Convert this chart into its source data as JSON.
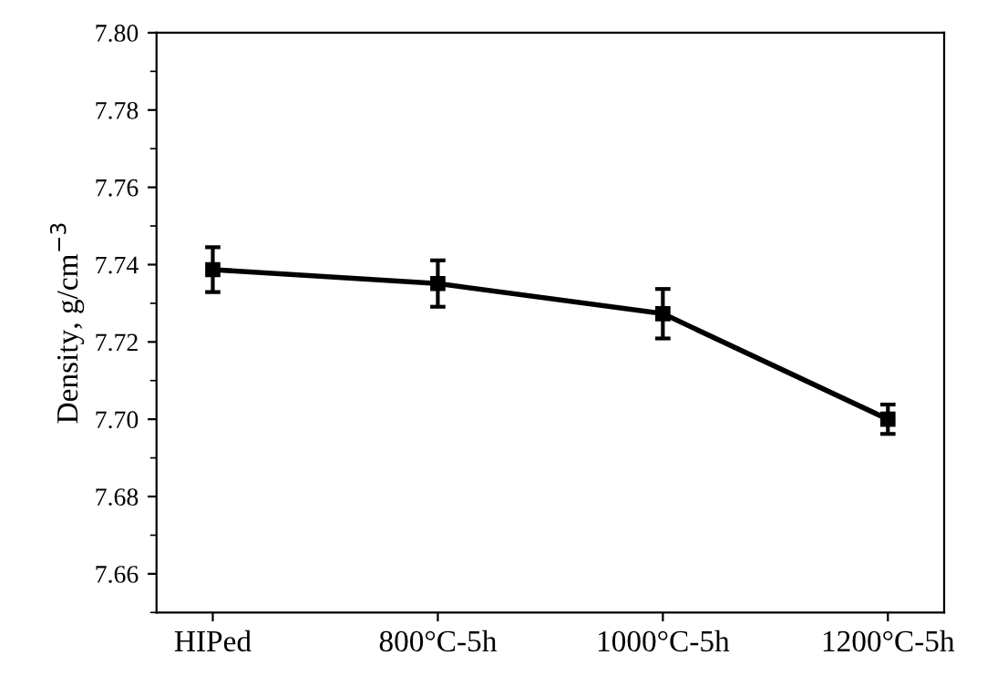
{
  "chart_data": {
    "type": "line",
    "ylabel": "Density, g/cm$^{−3}$",
    "categories": [
      "HIPed",
      "800°C-5h",
      "1000°C-5h",
      "1200°C-5h"
    ],
    "series": [
      {
        "color": "#000000",
        "values": [
          7.7387,
          7.7351,
          7.7273,
          7.7
        ],
        "errors": [
          0.0058,
          0.006,
          0.0064,
          0.0038
        ]
      }
    ],
    "ylim": [
      7.65,
      7.8
    ],
    "yticks": [
      7.66,
      7.68,
      {
        "value": 7.7,
        "label": "7.70"
      },
      7.72,
      7.74,
      7.76,
      7.78,
      {
        "value": 7.8,
        "label": "7.80"
      }
    ],
    "marker": "square",
    "line_style": "solid",
    "grid": false
  }
}
